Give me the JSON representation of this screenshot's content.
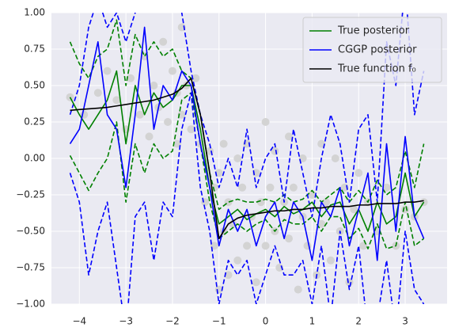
{
  "chart_data": {
    "type": "line",
    "x": [
      -4.2,
      -4.0,
      -3.8,
      -3.6,
      -3.4,
      -3.2,
      -3.0,
      -2.8,
      -2.6,
      -2.4,
      -2.2,
      -2.0,
      -1.8,
      -1.6,
      -1.4,
      -1.2,
      -1.0,
      -0.8,
      -0.6,
      -0.4,
      -0.2,
      0.0,
      0.2,
      0.4,
      0.6,
      0.8,
      1.0,
      1.2,
      1.4,
      1.6,
      1.8,
      2.0,
      2.2,
      2.4,
      2.6,
      2.8,
      3.0,
      3.2,
      3.4
    ],
    "series": [
      {
        "color": "#008000",
        "dashed": true,
        "values": [
          0.8,
          0.65,
          0.55,
          0.7,
          0.75,
          0.95,
          0.5,
          0.85,
          0.7,
          0.8,
          0.7,
          0.75,
          0.6,
          0.55,
          0.3,
          -0.1,
          -0.35,
          -0.3,
          -0.28,
          -0.3,
          -0.3,
          -0.28,
          -0.3,
          -0.25,
          -0.3,
          -0.28,
          -0.22,
          -0.3,
          -0.25,
          -0.2,
          -0.3,
          -0.22,
          -0.3,
          -0.15,
          -0.25,
          -0.2,
          0.05,
          -0.2,
          0.1
        ]
      },
      {
        "color": "#008000",
        "dashed": true,
        "values": [
          0.02,
          -0.1,
          -0.22,
          -0.1,
          0.0,
          0.25,
          -0.3,
          0.1,
          -0.1,
          0.1,
          0.0,
          0.05,
          0.4,
          0.45,
          0.1,
          -0.3,
          -0.55,
          -0.5,
          -0.45,
          -0.5,
          -0.45,
          -0.42,
          -0.5,
          -0.42,
          -0.45,
          -0.45,
          -0.4,
          -0.5,
          -0.4,
          -0.4,
          -0.55,
          -0.48,
          -0.62,
          -0.45,
          -0.62,
          -0.6,
          -0.3,
          -0.6,
          -0.55
        ]
      },
      {
        "color": "#0000ff",
        "dashed": true,
        "values": [
          0.3,
          0.5,
          0.9,
          1.1,
          0.9,
          1.0,
          0.8,
          1.0,
          1.2,
          1.1,
          1.2,
          1.1,
          1.0,
          0.6,
          0.3,
          0.1,
          -0.2,
          0.0,
          -0.2,
          0.2,
          -0.2,
          0.0,
          0.1,
          -0.3,
          0.2,
          -0.1,
          -0.4,
          0.0,
          0.3,
          0.1,
          -0.3,
          0.2,
          0.3,
          -0.3,
          0.8,
          0.5,
          1.2,
          0.3,
          0.6
        ]
      },
      {
        "color": "#0000ff",
        "dashed": true,
        "values": [
          -0.1,
          -0.3,
          -0.8,
          -0.5,
          -0.3,
          -0.75,
          -1.2,
          -0.4,
          -0.3,
          -0.7,
          -0.3,
          -0.4,
          0.2,
          0.45,
          -0.2,
          -0.5,
          -1.0,
          -0.7,
          -0.8,
          -0.7,
          -1.0,
          -0.8,
          -0.6,
          -0.8,
          -0.8,
          -0.7,
          -1.0,
          -0.6,
          -1.1,
          -0.5,
          -0.9,
          -0.6,
          -1.2,
          -1.1,
          -0.7,
          -1.2,
          -0.5,
          -0.9,
          -1.0
        ]
      },
      {
        "name": "True posterior",
        "color": "#008000",
        "values": [
          0.42,
          0.3,
          0.2,
          0.3,
          0.4,
          0.6,
          0.1,
          0.5,
          0.3,
          0.45,
          0.35,
          0.4,
          0.5,
          0.5,
          0.2,
          -0.2,
          -0.45,
          -0.4,
          -0.35,
          -0.42,
          -0.38,
          -0.35,
          -0.4,
          -0.33,
          -0.38,
          -0.35,
          -0.3,
          -0.4,
          -0.32,
          -0.3,
          -0.45,
          -0.35,
          -0.5,
          -0.3,
          -0.45,
          -0.4,
          -0.1,
          -0.4,
          -0.3
        ]
      },
      {
        "name": "CGGP posterior",
        "color": "#0000ff",
        "values": [
          0.1,
          0.2,
          0.5,
          0.8,
          0.3,
          0.2,
          -0.2,
          0.3,
          0.9,
          0.2,
          0.5,
          0.4,
          0.6,
          0.5,
          0.1,
          -0.2,
          -0.6,
          -0.35,
          -0.5,
          -0.35,
          -0.6,
          -0.4,
          -0.3,
          -0.55,
          -0.3,
          -0.4,
          -0.7,
          -0.3,
          -0.4,
          -0.2,
          -0.6,
          -0.35,
          -0.1,
          -0.7,
          0.1,
          -0.5,
          0.15,
          -0.4,
          -0.55
        ]
      },
      {
        "name": "True function f₀",
        "color": "#000000",
        "values": [
          0.33,
          0.335,
          0.34,
          0.345,
          0.35,
          0.36,
          0.37,
          0.38,
          0.39,
          0.4,
          0.42,
          0.44,
          0.48,
          0.55,
          0.3,
          -0.1,
          -0.55,
          -0.45,
          -0.41,
          -0.39,
          -0.38,
          -0.37,
          -0.36,
          -0.36,
          -0.35,
          -0.35,
          -0.34,
          -0.34,
          -0.33,
          -0.33,
          -0.33,
          -0.32,
          -0.32,
          -0.31,
          -0.31,
          -0.31,
          -0.3,
          -0.3,
          -0.29
        ]
      }
    ],
    "points": {
      "color": "#d3d3d3",
      "x": [
        -4.2,
        -3.9,
        -3.6,
        -3.4,
        -3.2,
        -3.0,
        -2.9,
        -2.7,
        -2.6,
        -2.5,
        -2.4,
        -2.3,
        -2.2,
        -2.1,
        -2.0,
        -1.9,
        -1.9,
        -1.8,
        -1.8,
        -1.7,
        -1.6,
        -1.5,
        -1.4,
        -1.3,
        -1.2,
        -1.1,
        -1.1,
        -1.0,
        -1.0,
        -0.9,
        -0.9,
        -0.8,
        -0.8,
        -0.7,
        -0.6,
        -0.6,
        -0.5,
        -0.4,
        -0.4,
        -0.3,
        -0.2,
        -0.2,
        -0.1,
        0.0,
        0.0,
        0.1,
        0.2,
        0.2,
        0.3,
        0.4,
        0.5,
        0.5,
        0.6,
        0.7,
        0.8,
        0.8,
        0.9,
        1.0,
        1.1,
        1.2,
        1.2,
        1.3,
        1.4,
        1.5,
        1.6,
        1.7,
        1.8,
        1.9,
        2.0,
        2.1,
        2.2,
        2.4,
        2.6,
        2.8,
        3.0,
        3.2,
        3.4
      ],
      "y": [
        0.42,
        0.3,
        0.45,
        0.6,
        0.4,
        0.2,
        0.55,
        0.3,
        0.7,
        0.15,
        0.5,
        0.35,
        0.8,
        0.25,
        0.6,
        0.45,
        0.1,
        0.9,
        0.3,
        0.5,
        0.2,
        0.55,
        0.1,
        -0.3,
        0.05,
        -0.6,
        -0.2,
        -0.9,
        -0.1,
        -0.5,
        0.1,
        -0.8,
        -0.3,
        -0.45,
        -0.7,
        0.0,
        -0.2,
        -0.6,
        0.1,
        -0.4,
        -0.85,
        -0.1,
        -0.3,
        0.25,
        -0.6,
        -0.2,
        -0.5,
        0.05,
        -0.75,
        -0.3,
        0.15,
        -0.55,
        -0.2,
        -0.9,
        -0.4,
        0.0,
        -0.6,
        -0.25,
        -0.8,
        0.1,
        -0.45,
        -0.3,
        -0.7,
        0.0,
        -0.5,
        -0.2,
        -0.85,
        -0.35,
        -0.1,
        -0.6,
        -0.3,
        -0.5,
        -0.2,
        -0.6,
        -0.35,
        -0.4,
        -0.3
      ]
    },
    "xlim": [
      -4.6,
      3.9
    ],
    "ylim": [
      -1,
      1
    ],
    "xticks": [
      {
        "value": -4,
        "label": "−4"
      },
      {
        "value": -3,
        "label": "−3"
      },
      {
        "value": -2,
        "label": "−2"
      },
      {
        "value": -1,
        "label": "−1"
      },
      0,
      1,
      2,
      3
    ],
    "yticks": [
      {
        "value": -1,
        "label": "−1.00"
      },
      {
        "value": -0.75,
        "label": "−0.75"
      },
      {
        "value": -0.5,
        "label": "−0.50"
      },
      {
        "value": -0.25,
        "label": "−0.25"
      },
      {
        "value": 0,
        "label": "0.00"
      },
      {
        "value": 0.25,
        "label": "0.25"
      },
      {
        "value": 0.5,
        "label": "0.50"
      },
      {
        "value": 0.75,
        "label": "0.75"
      },
      {
        "value": 1,
        "label": "1.00"
      }
    ],
    "grid": true,
    "legend": "upper right"
  }
}
